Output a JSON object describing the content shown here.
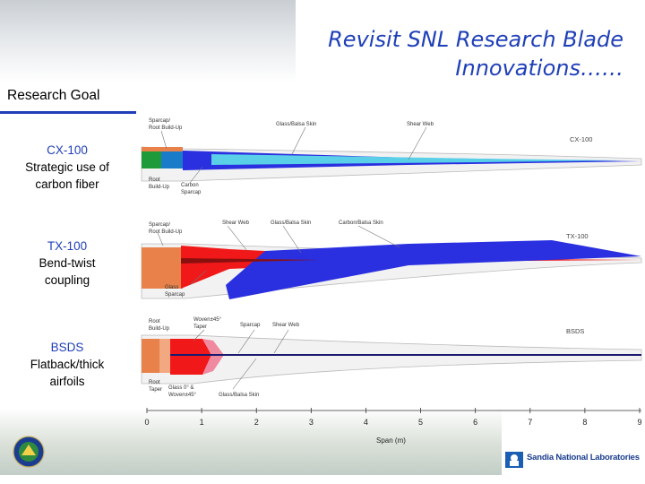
{
  "title": "Revisit SNL Research Blade Innovations……",
  "title_lines": [
    "Revisit SNL Research Blade",
    "Innovations……"
  ],
  "research_goal_heading": "Research Goal",
  "categories": [
    {
      "name": "CX-100",
      "lines": [
        "Strategic use of",
        "carbon fiber"
      ]
    },
    {
      "name": "TX-100",
      "lines": [
        "Bend-twist",
        "coupling"
      ]
    },
    {
      "name": "BSDS",
      "lines": [
        "Flatback/thick",
        "airfoils"
      ]
    }
  ],
  "blades": {
    "cx": {
      "label": "CX-100",
      "callouts": {
        "sparcap": [
          "Sparcap/",
          "Root Build-Up"
        ],
        "glass_balsa": "Glass/Balsa Skin",
        "shear_web": "Shear Web",
        "root": [
          "Root",
          "Build-Up"
        ],
        "carbon": [
          "Carbon",
          "Sparcap"
        ]
      }
    },
    "tx": {
      "label": "TX-100",
      "callouts": {
        "sparcap": [
          "Sparcap/",
          "Root Build-Up"
        ],
        "shear_web": "Shear Web",
        "glass_balsa": "Glass/Balsa Skin",
        "carbon_balsa": "Carbon/Balsa Skin",
        "glass_spar": [
          "Glass",
          "Sparcap"
        ]
      }
    },
    "bsds": {
      "label": "BSDS",
      "callouts": {
        "root": [
          "Root",
          "Build-Up"
        ],
        "woven": [
          "Woven±45°",
          "Taper"
        ],
        "sparcap": "Sparcap",
        "shear_web": "Shear Web",
        "root_taper": [
          "Root",
          "Taper"
        ],
        "glass0": [
          "Glass 0° &",
          "Woven±45°"
        ],
        "glass_balsa": "Glass/Balsa Skin"
      }
    }
  },
  "span_axis": {
    "label": "Span (m)",
    "ticks": [
      "0",
      "1",
      "2",
      "3",
      "4",
      "5",
      "6",
      "7",
      "8",
      "9"
    ]
  },
  "footer_org": "Sandia National Laboratories",
  "colors": {
    "title": "#1f3fb8",
    "carbon": "#2a2fe0",
    "root": "#e8824a",
    "red_spar": "#f01818",
    "green_root": "#1f9a3a",
    "cyan_spar": "#5ad0e8"
  }
}
